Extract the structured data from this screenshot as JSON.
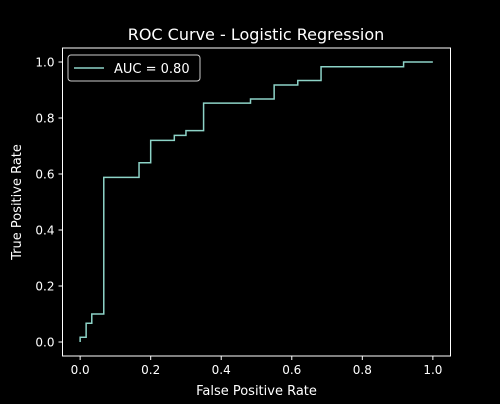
{
  "chart_data": {
    "type": "line",
    "title": "ROC Curve - Logistic Regression",
    "xlabel": "False Positive Rate",
    "ylabel": "True Positive Rate",
    "xlim": [
      -0.05,
      1.05
    ],
    "ylim": [
      -0.05,
      1.05
    ],
    "x_ticks": [
      0.0,
      0.2,
      0.4,
      0.6,
      0.8,
      1.0
    ],
    "y_ticks": [
      0.0,
      0.2,
      0.4,
      0.6,
      0.8,
      1.0
    ],
    "x_tick_labels": [
      "0.0",
      "0.2",
      "0.4",
      "0.6",
      "0.8",
      "1.0"
    ],
    "y_tick_labels": [
      "0.0",
      "0.2",
      "0.4",
      "0.6",
      "0.8",
      "1.0"
    ],
    "grid": false,
    "legend_position": "upper-left",
    "series": [
      {
        "name": "AUC = 0.80",
        "color": "#8dd3c7",
        "step": true,
        "x": [
          0.0,
          0.0,
          0.017,
          0.017,
          0.033,
          0.033,
          0.05,
          0.05,
          0.067,
          0.067,
          0.167,
          0.167,
          0.2,
          0.2,
          0.267,
          0.267,
          0.3,
          0.3,
          0.35,
          0.35,
          0.483,
          0.483,
          0.55,
          0.55,
          0.617,
          0.617,
          0.683,
          0.683,
          0.917,
          0.917,
          1.0
        ],
        "y": [
          0.0,
          0.017,
          0.017,
          0.067,
          0.067,
          0.1,
          0.1,
          0.1,
          0.1,
          0.588,
          0.588,
          0.64,
          0.64,
          0.72,
          0.72,
          0.738,
          0.738,
          0.755,
          0.755,
          0.853,
          0.853,
          0.868,
          0.868,
          0.918,
          0.918,
          0.934,
          0.934,
          0.983,
          0.983,
          1.0,
          1.0
        ]
      }
    ]
  },
  "colors": {
    "background": "#000000",
    "foreground": "#ffffff",
    "legend_border": "#cccccc"
  }
}
